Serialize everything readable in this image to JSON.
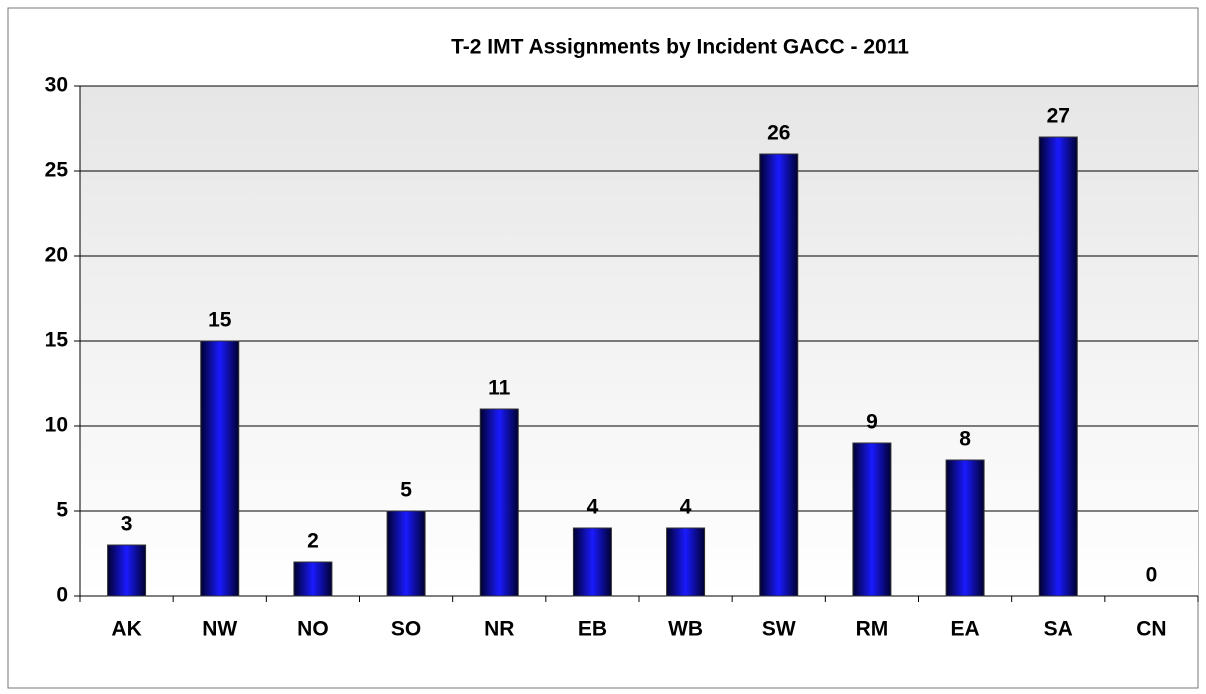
{
  "chart_data": {
    "type": "bar",
    "title": "T-2 IMT Assignments by Incident GACC - 2011",
    "categories": [
      "AK",
      "NW",
      "NO",
      "SO",
      "NR",
      "EB",
      "WB",
      "SW",
      "RM",
      "EA",
      "SA",
      "CN"
    ],
    "values": [
      3,
      15,
      2,
      5,
      11,
      4,
      4,
      26,
      9,
      8,
      27,
      0
    ],
    "color": "#0000ff",
    "ylim": [
      0,
      30
    ],
    "yticks": [
      0,
      5,
      10,
      15,
      20,
      25,
      30
    ],
    "grid": true
  }
}
